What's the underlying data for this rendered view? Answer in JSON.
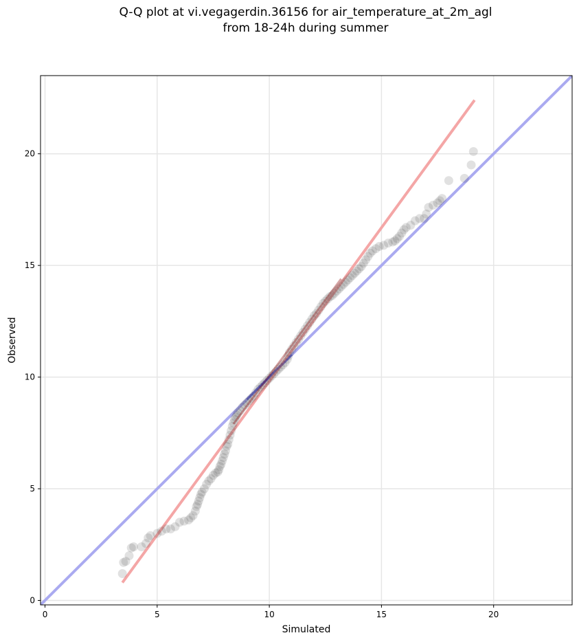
{
  "title": {
    "line1": "Q-Q plot at vi.vegagerdin.36156 for air_temperature_at_2m_agl",
    "line2": "from 18-24h during summer"
  },
  "chart_data": {
    "type": "scatter",
    "xlabel": "Simulated",
    "ylabel": "Observed",
    "xlim": [
      -0.2,
      23.5
    ],
    "ylim": [
      -0.2,
      23.5
    ],
    "xticks": [
      0,
      5,
      10,
      15,
      20
    ],
    "yticks": [
      0,
      5,
      10,
      15,
      20
    ],
    "grid": true,
    "colors": {
      "points": "#333333",
      "identity_line": "#aaaaf0",
      "fit_line": "#f4a6a6",
      "fit_inner": "#8b0000",
      "identity_inner": "#00008b"
    },
    "identity_line": {
      "x": [
        -0.2,
        23.5
      ],
      "y": [
        -0.2,
        23.5
      ]
    },
    "fit_line": {
      "x": [
        3.45,
        19.15
      ],
      "y": [
        0.8,
        22.4
      ]
    },
    "points": [
      [
        3.45,
        1.2
      ],
      [
        3.5,
        1.7
      ],
      [
        3.6,
        1.75
      ],
      [
        3.75,
        2.0
      ],
      [
        3.85,
        2.35
      ],
      [
        3.95,
        2.4
      ],
      [
        4.3,
        2.4
      ],
      [
        4.5,
        2.55
      ],
      [
        4.6,
        2.8
      ],
      [
        4.7,
        2.9
      ],
      [
        5.0,
        3.0
      ],
      [
        5.2,
        3.1
      ],
      [
        5.4,
        3.2
      ],
      [
        5.6,
        3.2
      ],
      [
        5.8,
        3.3
      ],
      [
        6.0,
        3.5
      ],
      [
        6.2,
        3.55
      ],
      [
        6.4,
        3.6
      ],
      [
        6.5,
        3.7
      ],
      [
        6.6,
        3.8
      ],
      [
        6.7,
        4.0
      ],
      [
        6.75,
        4.2
      ],
      [
        6.8,
        4.3
      ],
      [
        6.85,
        4.45
      ],
      [
        6.9,
        4.6
      ],
      [
        6.95,
        4.75
      ],
      [
        7.0,
        4.85
      ],
      [
        7.1,
        5.0
      ],
      [
        7.2,
        5.2
      ],
      [
        7.3,
        5.35
      ],
      [
        7.4,
        5.45
      ],
      [
        7.5,
        5.6
      ],
      [
        7.6,
        5.7
      ],
      [
        7.7,
        5.75
      ],
      [
        7.75,
        5.85
      ],
      [
        7.8,
        6.0
      ],
      [
        7.85,
        6.1
      ],
      [
        7.9,
        6.25
      ],
      [
        7.95,
        6.4
      ],
      [
        8.0,
        6.55
      ],
      [
        8.05,
        6.7
      ],
      [
        8.1,
        6.9
      ],
      [
        8.15,
        7.0
      ],
      [
        8.2,
        7.2
      ],
      [
        8.25,
        7.4
      ],
      [
        8.3,
        7.6
      ],
      [
        8.35,
        7.8
      ],
      [
        8.4,
        7.95
      ],
      [
        8.45,
        8.1
      ],
      [
        8.5,
        8.2
      ],
      [
        8.55,
        8.3
      ],
      [
        8.6,
        8.4
      ],
      [
        8.7,
        8.5
      ],
      [
        8.8,
        8.65
      ],
      [
        8.9,
        8.75
      ],
      [
        9.0,
        8.85
      ],
      [
        9.1,
        8.95
      ],
      [
        9.2,
        9.05
      ],
      [
        9.3,
        9.15
      ],
      [
        9.4,
        9.3
      ],
      [
        9.5,
        9.45
      ],
      [
        9.6,
        9.55
      ],
      [
        9.7,
        9.65
      ],
      [
        9.8,
        9.75
      ],
      [
        9.9,
        9.85
      ],
      [
        10.0,
        9.95
      ],
      [
        10.1,
        10.05
      ],
      [
        10.2,
        10.15
      ],
      [
        10.3,
        10.25
      ],
      [
        10.4,
        10.35
      ],
      [
        10.5,
        10.45
      ],
      [
        10.6,
        10.55
      ],
      [
        10.7,
        10.65
      ],
      [
        10.8,
        10.8
      ],
      [
        10.85,
        10.95
      ],
      [
        10.9,
        11.1
      ],
      [
        11.0,
        11.25
      ],
      [
        11.1,
        11.4
      ],
      [
        11.2,
        11.55
      ],
      [
        11.3,
        11.7
      ],
      [
        11.4,
        11.85
      ],
      [
        11.5,
        12.0
      ],
      [
        11.6,
        12.15
      ],
      [
        11.7,
        12.3
      ],
      [
        11.8,
        12.45
      ],
      [
        11.9,
        12.6
      ],
      [
        12.0,
        12.75
      ],
      [
        12.1,
        12.85
      ],
      [
        12.2,
        13.0
      ],
      [
        12.3,
        13.15
      ],
      [
        12.4,
        13.3
      ],
      [
        12.5,
        13.4
      ],
      [
        12.6,
        13.5
      ],
      [
        12.7,
        13.6
      ],
      [
        12.8,
        13.65
      ],
      [
        12.9,
        13.75
      ],
      [
        13.0,
        13.85
      ],
      [
        13.1,
        13.95
      ],
      [
        13.2,
        14.05
      ],
      [
        13.3,
        14.15
      ],
      [
        13.4,
        14.25
      ],
      [
        13.5,
        14.35
      ],
      [
        13.6,
        14.45
      ],
      [
        13.7,
        14.55
      ],
      [
        13.8,
        14.65
      ],
      [
        13.9,
        14.75
      ],
      [
        14.0,
        14.85
      ],
      [
        14.1,
        14.95
      ],
      [
        14.2,
        15.1
      ],
      [
        14.3,
        15.25
      ],
      [
        14.4,
        15.4
      ],
      [
        14.5,
        15.55
      ],
      [
        14.6,
        15.65
      ],
      [
        14.75,
        15.75
      ],
      [
        14.9,
        15.85
      ],
      [
        15.1,
        15.9
      ],
      [
        15.3,
        16.0
      ],
      [
        15.5,
        16.05
      ],
      [
        15.6,
        16.1
      ],
      [
        15.7,
        16.2
      ],
      [
        15.8,
        16.3
      ],
      [
        15.9,
        16.45
      ],
      [
        16.0,
        16.6
      ],
      [
        16.1,
        16.7
      ],
      [
        16.3,
        16.8
      ],
      [
        16.5,
        17.0
      ],
      [
        16.7,
        17.1
      ],
      [
        16.9,
        17.1
      ],
      [
        17.0,
        17.3
      ],
      [
        17.1,
        17.6
      ],
      [
        17.3,
        17.7
      ],
      [
        17.5,
        17.8
      ],
      [
        17.6,
        17.9
      ],
      [
        17.7,
        18.0
      ],
      [
        18.0,
        18.8
      ],
      [
        18.7,
        18.9
      ],
      [
        19.0,
        19.5
      ],
      [
        19.1,
        20.1
      ]
    ]
  }
}
